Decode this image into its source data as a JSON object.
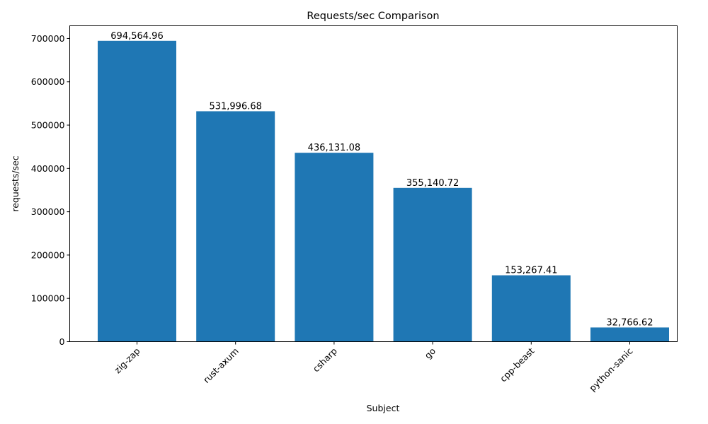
{
  "chart_data": {
    "type": "bar",
    "title": "Requests/sec Comparison",
    "xlabel": "Subject",
    "ylabel": "requests/sec",
    "categories": [
      "zig-zap",
      "rust-axum",
      "csharp",
      "go",
      "cpp-beast",
      "python-sanic"
    ],
    "values": [
      694564.96,
      531996.68,
      436131.08,
      355140.72,
      153267.41,
      32766.62
    ],
    "data_labels": [
      "694,564.96",
      "531,996.68",
      "436,131.08",
      "355,140.72",
      "153,267.41",
      "32,766.62"
    ],
    "yticks": [
      0,
      100000,
      200000,
      300000,
      400000,
      500000,
      600000,
      700000
    ],
    "ytick_labels": [
      "0",
      "100000",
      "200000",
      "300000",
      "400000",
      "500000",
      "600000",
      "700000"
    ],
    "ylim": [
      0,
      729293
    ],
    "grid": false,
    "bar_color": "#1f77b4",
    "xtick_rotation": 45
  }
}
